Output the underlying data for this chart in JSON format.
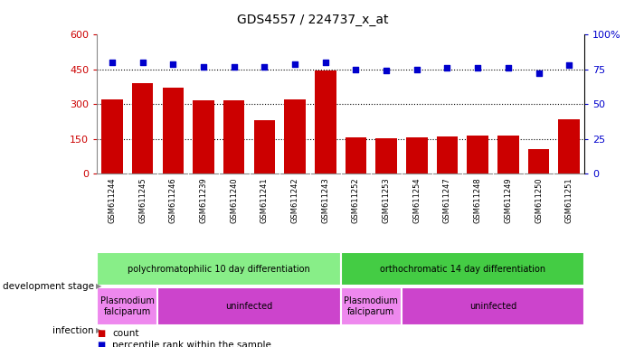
{
  "title": "GDS4557 / 224737_x_at",
  "samples": [
    "GSM611244",
    "GSM611245",
    "GSM611246",
    "GSM611239",
    "GSM611240",
    "GSM611241",
    "GSM611242",
    "GSM611243",
    "GSM611252",
    "GSM611253",
    "GSM611254",
    "GSM611247",
    "GSM611248",
    "GSM611249",
    "GSM611250",
    "GSM611251"
  ],
  "counts": [
    320,
    390,
    370,
    315,
    315,
    230,
    320,
    445,
    155,
    153,
    155,
    160,
    165,
    165,
    105,
    235
  ],
  "percentiles": [
    80,
    80,
    79,
    77,
    77,
    77,
    79,
    80,
    75,
    74,
    75,
    76,
    76,
    76,
    72,
    78
  ],
  "bar_color": "#cc0000",
  "dot_color": "#0000cc",
  "ylim_left": [
    0,
    600
  ],
  "ylim_right": [
    0,
    100
  ],
  "yticks_left": [
    0,
    150,
    300,
    450,
    600
  ],
  "ytick_labels_left": [
    "0",
    "150",
    "300",
    "450",
    "600"
  ],
  "yticks_right": [
    0,
    25,
    50,
    75,
    100
  ],
  "ytick_labels_right": [
    "0",
    "25",
    "50",
    "75",
    "100%"
  ],
  "hlines": [
    150,
    300,
    450
  ],
  "dev_stage_groups": [
    {
      "label": "polychromatophilic 10 day differentiation",
      "start": 0,
      "end": 8,
      "color": "#88ee88"
    },
    {
      "label": "orthochromatic 14 day differentiation",
      "start": 8,
      "end": 16,
      "color": "#44cc44"
    }
  ],
  "infection_groups": [
    {
      "label": "Plasmodium\nfalciparum",
      "start": 0,
      "end": 2,
      "color": "#ee88ee"
    },
    {
      "label": "uninfected",
      "start": 2,
      "end": 8,
      "color": "#cc44cc"
    },
    {
      "label": "Plasmodium\nfalciparum",
      "start": 8,
      "end": 10,
      "color": "#ee88ee"
    },
    {
      "label": "uninfected",
      "start": 10,
      "end": 16,
      "color": "#cc44cc"
    }
  ],
  "plot_bg": "#ffffff",
  "tick_area_bg": "#d8d8d8",
  "left_label_dev": "development stage",
  "left_label_inf": "infection",
  "legend_count_label": "count",
  "legend_pct_label": "percentile rank within the sample"
}
